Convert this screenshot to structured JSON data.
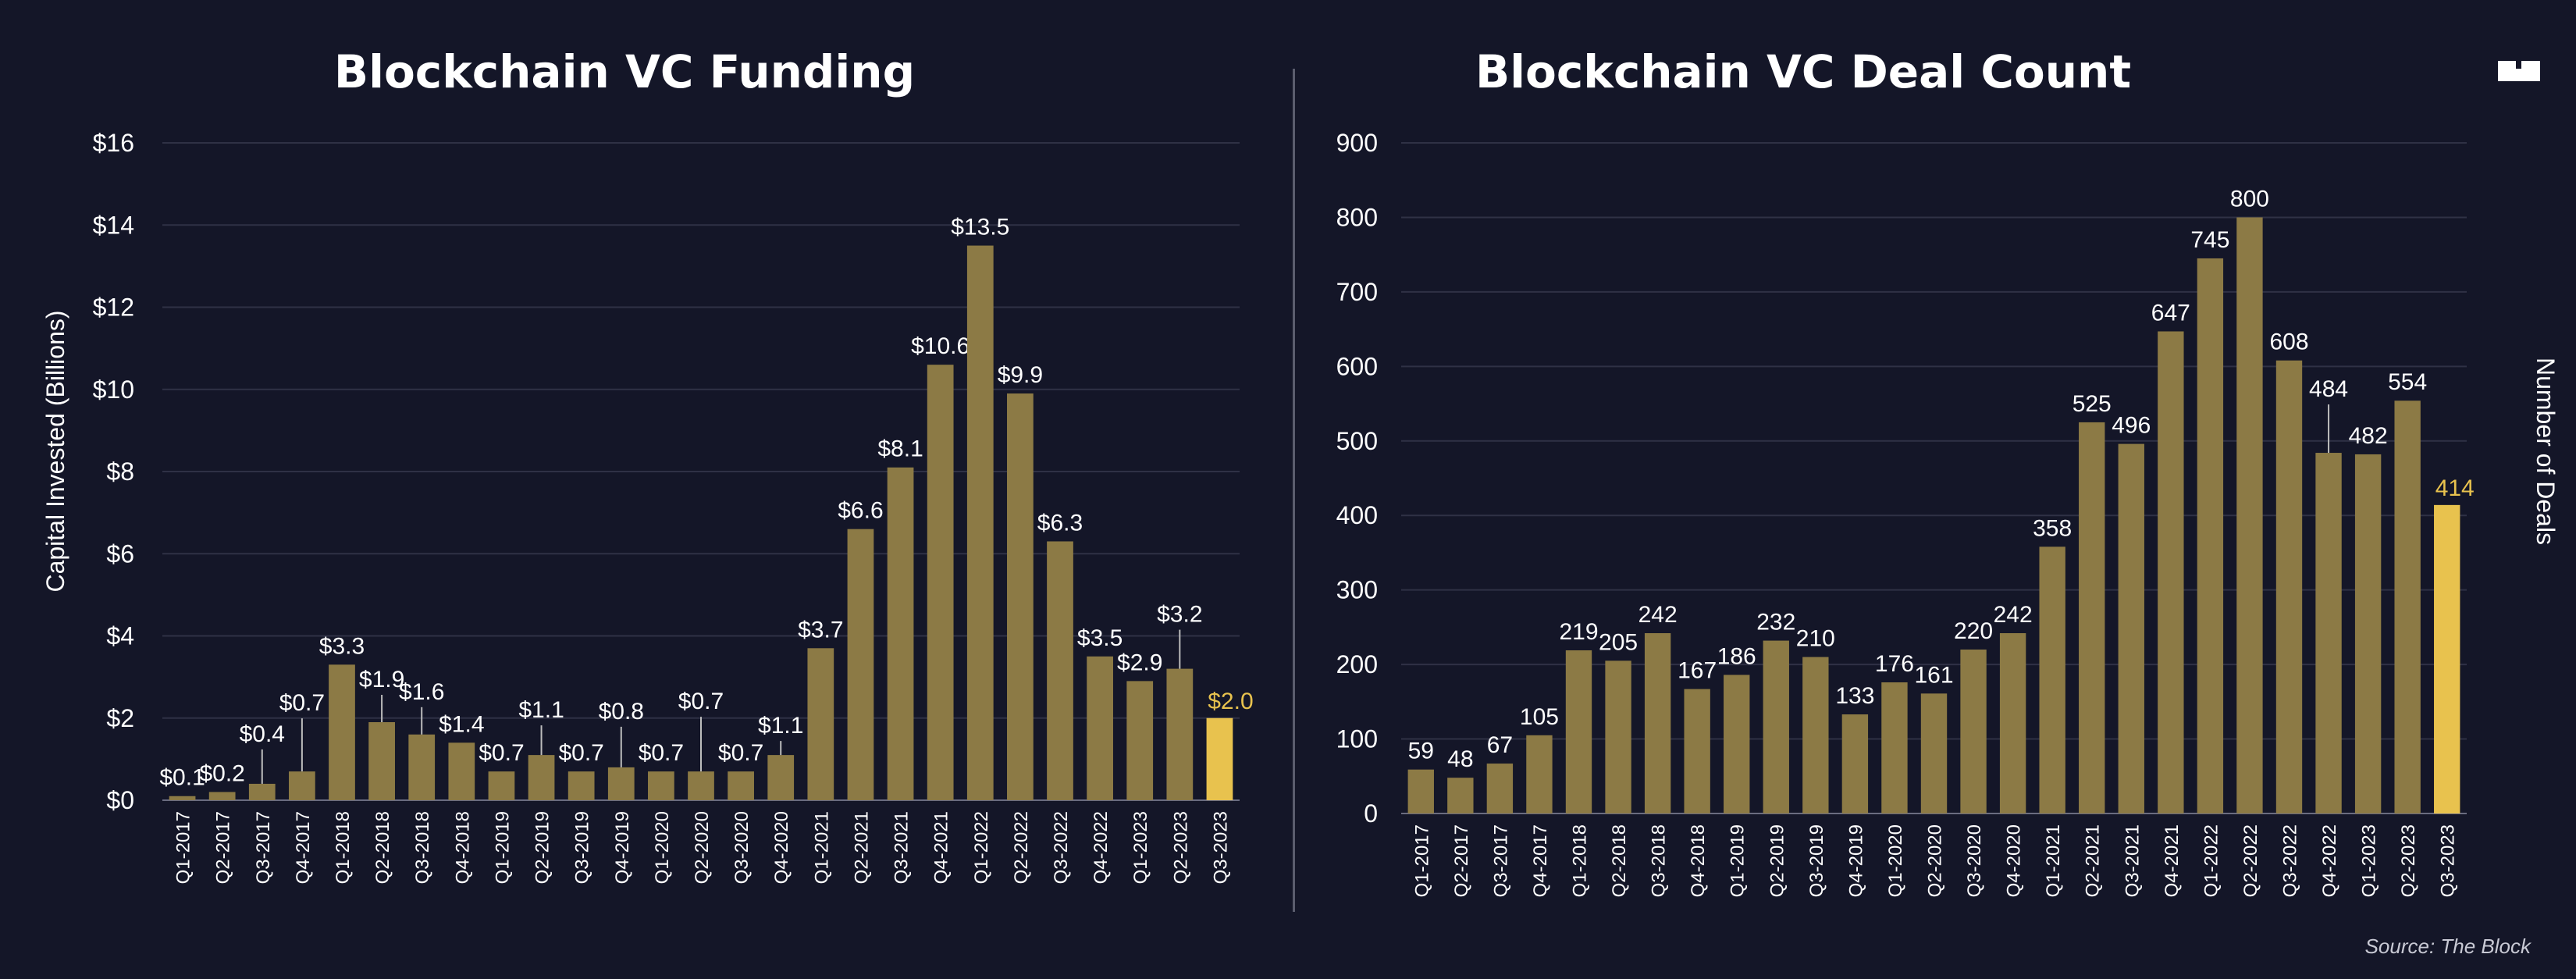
{
  "colors": {
    "background": "#141628",
    "bar": "#8c7a45",
    "highlight": "#e8c24e",
    "grid": "#2f3145"
  },
  "logo_icon": "the-block-logo-icon",
  "source_text": "Source: The Block",
  "chart_data": [
    {
      "type": "bar",
      "title": "Blockchain VC Funding",
      "ylabel": "Capital Invested (Billions)",
      "ylim": [
        0,
        16
      ],
      "yticks": [
        "$0",
        "$2",
        "$4",
        "$6",
        "$8",
        "$10",
        "$12",
        "$14",
        "$16"
      ],
      "ytick_values": [
        0,
        2,
        4,
        6,
        8,
        10,
        12,
        14,
        16
      ],
      "categories": [
        "Q1-2017",
        "Q2-2017",
        "Q3-2017",
        "Q4-2017",
        "Q1-2018",
        "Q2-2018",
        "Q3-2018",
        "Q4-2018",
        "Q1-2019",
        "Q2-2019",
        "Q3-2019",
        "Q4-2019",
        "Q1-2020",
        "Q2-2020",
        "Q3-2020",
        "Q4-2020",
        "Q1-2021",
        "Q2-2021",
        "Q3-2021",
        "Q4-2021",
        "Q1-2022",
        "Q2-2022",
        "Q3-2022",
        "Q4-2022",
        "Q1-2023",
        "Q2-2023",
        "Q3-2023"
      ],
      "values": [
        0.1,
        0.2,
        0.4,
        0.7,
        3.3,
        1.9,
        1.6,
        1.4,
        0.7,
        1.1,
        0.7,
        0.8,
        0.7,
        0.7,
        0.7,
        1.1,
        3.7,
        6.6,
        8.1,
        10.6,
        13.5,
        9.9,
        6.3,
        3.5,
        2.9,
        3.2,
        2.0
      ],
      "labels": [
        "$0.1",
        "$0.2",
        "$0.4",
        "$0.7",
        "$3.3",
        "$1.9",
        "$1.6",
        "$1.4",
        "$0.7",
        "$1.1",
        "$0.7",
        "$0.8",
        "$0.7",
        "$0.7",
        "$0.7",
        "$1.1",
        "$3.7",
        "$6.6",
        "$8.1",
        "$10.6",
        "$13.5",
        "$9.9",
        "$6.3",
        "$3.5",
        "$2.9",
        "$3.2",
        "$2.0"
      ],
      "highlight_index": 26,
      "grid": true
    },
    {
      "type": "bar",
      "title": "Blockchain VC Deal Count",
      "ylabel": "Number of Deals",
      "ylim": [
        0,
        900
      ],
      "yticks": [
        "0",
        "100",
        "200",
        "300",
        "400",
        "500",
        "600",
        "700",
        "800",
        "900"
      ],
      "ytick_values": [
        0,
        100,
        200,
        300,
        400,
        500,
        600,
        700,
        800,
        900
      ],
      "categories": [
        "Q1-2017",
        "Q2-2017",
        "Q3-2017",
        "Q4-2017",
        "Q1-2018",
        "Q2-2018",
        "Q3-2018",
        "Q4-2018",
        "Q1-2019",
        "Q2-2019",
        "Q3-2019",
        "Q4-2019",
        "Q1-2020",
        "Q2-2020",
        "Q3-2020",
        "Q4-2020",
        "Q1-2021",
        "Q2-2021",
        "Q3-2021",
        "Q4-2021",
        "Q1-2022",
        "Q2-2022",
        "Q3-2022",
        "Q4-2022",
        "Q1-2023",
        "Q2-2023",
        "Q3-2023"
      ],
      "values": [
        59,
        48,
        67,
        105,
        219,
        205,
        242,
        167,
        186,
        232,
        210,
        133,
        176,
        161,
        220,
        242,
        358,
        525,
        496,
        647,
        745,
        800,
        608,
        484,
        482,
        554,
        414
      ],
      "labels": [
        "59",
        "48",
        "67",
        "105",
        "219",
        "205",
        "242",
        "167",
        "186",
        "232",
        "210",
        "133",
        "176",
        "161",
        "220",
        "242",
        "358",
        "525",
        "496",
        "647",
        "745",
        "800",
        "608",
        "484",
        "482",
        "554",
        "414"
      ],
      "highlight_index": 26,
      "grid": true
    }
  ]
}
